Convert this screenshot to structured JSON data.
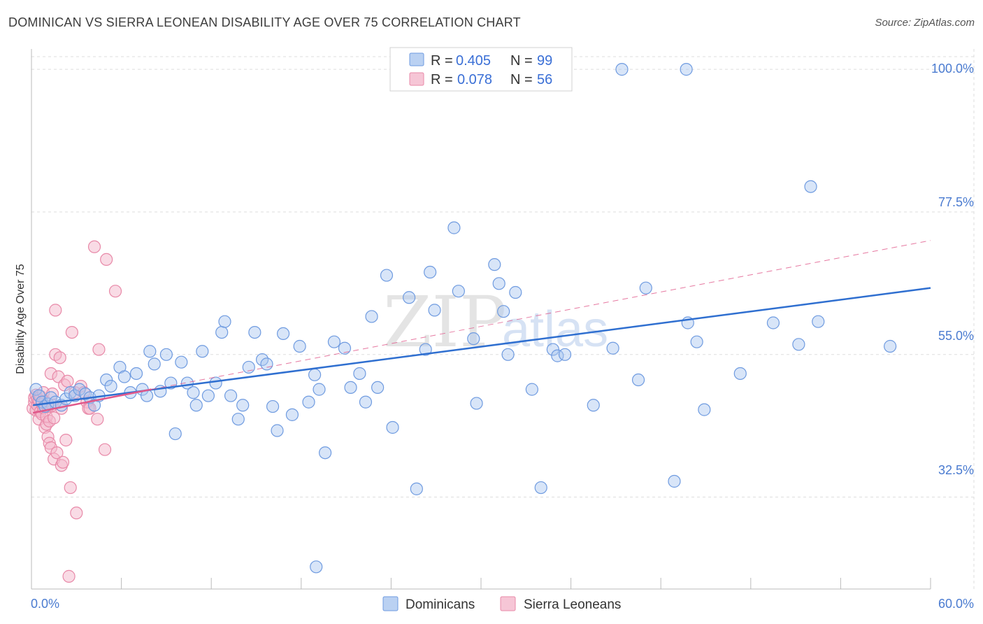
{
  "title": "DOMINICAN VS SIERRA LEONEAN DISABILITY AGE OVER 75 CORRELATION CHART",
  "source": "Source: ZipAtlas.com",
  "watermark": {
    "zip": "ZIP",
    "atlas": "atlas"
  },
  "colors": {
    "blue_fill": "#a9c6ef",
    "blue_stroke": "#6f9be0",
    "blue_line": "#2f6fd0",
    "pink_fill": "#f4b8cc",
    "pink_stroke": "#e889a8",
    "pink_line": "#e0588a",
    "grid": "#dddddd",
    "axis_text": "#4a7bd0"
  },
  "legend": {
    "r_label": "R =",
    "n_label": "N =",
    "entries": [
      {
        "r": "0.405",
        "n": "99"
      },
      {
        "r": "0.078",
        "n": "56"
      }
    ]
  },
  "chart_data": {
    "type": "scatter",
    "title": "DOMINICAN VS SIERRA LEONEAN DISABILITY AGE OVER 75 CORRELATION CHART",
    "xlabel": "",
    "ylabel": "Disability Age Over 75",
    "xlim": [
      0,
      60
    ],
    "ylim": [
      18,
      102
    ],
    "x_tick_labels": [
      "0.0%",
      "60.0%"
    ],
    "y_ticks": [
      32.5,
      55.0,
      77.5,
      100.0
    ],
    "y_tick_labels": [
      "32.5%",
      "55.0%",
      "77.5%",
      "100.0%"
    ],
    "grid": true,
    "legend_position": "top-center",
    "series": [
      {
        "name": "Dominicans",
        "color": "#a9c6ef",
        "trend": {
          "x": [
            0.1,
            60
          ],
          "y": [
            47.0,
            65.5
          ]
        },
        "points": [
          [
            0.3,
            49.5
          ],
          [
            0.5,
            48.5
          ],
          [
            0.7,
            47.5
          ],
          [
            0.9,
            46.8
          ],
          [
            1.1,
            47.2
          ],
          [
            1.3,
            48.2
          ],
          [
            1.6,
            47.5
          ],
          [
            2.0,
            47.0
          ],
          [
            2.3,
            48.0
          ],
          [
            2.6,
            49.0
          ],
          [
            2.9,
            48.5
          ],
          [
            3.2,
            49.5
          ],
          [
            3.6,
            48.8
          ],
          [
            3.9,
            48.2
          ],
          [
            4.2,
            47.0
          ],
          [
            4.5,
            48.5
          ],
          [
            5.0,
            51.0
          ],
          [
            5.3,
            50.0
          ],
          [
            5.9,
            53.0
          ],
          [
            6.2,
            51.5
          ],
          [
            6.6,
            49.0
          ],
          [
            7.0,
            52.0
          ],
          [
            7.4,
            49.5
          ],
          [
            7.7,
            48.5
          ],
          [
            7.9,
            55.5
          ],
          [
            8.2,
            53.5
          ],
          [
            8.6,
            49.2
          ],
          [
            9.0,
            55.0
          ],
          [
            9.3,
            50.5
          ],
          [
            9.6,
            42.5
          ],
          [
            10.0,
            53.8
          ],
          [
            10.4,
            50.5
          ],
          [
            10.8,
            49.0
          ],
          [
            11.0,
            47.0
          ],
          [
            11.4,
            55.5
          ],
          [
            11.8,
            48.5
          ],
          [
            12.3,
            50.5
          ],
          [
            12.7,
            58.5
          ],
          [
            12.9,
            60.2
          ],
          [
            13.3,
            48.5
          ],
          [
            13.8,
            44.8
          ],
          [
            14.1,
            47.0
          ],
          [
            14.5,
            53.0
          ],
          [
            14.9,
            58.5
          ],
          [
            15.4,
            54.2
          ],
          [
            15.7,
            53.5
          ],
          [
            16.1,
            46.8
          ],
          [
            16.4,
            43.0
          ],
          [
            16.8,
            58.3
          ],
          [
            17.4,
            45.5
          ],
          [
            17.9,
            56.3
          ],
          [
            18.5,
            47.5
          ],
          [
            18.9,
            51.8
          ],
          [
            19.2,
            49.5
          ],
          [
            19.6,
            39.5
          ],
          [
            20.2,
            57.0
          ],
          [
            20.9,
            56.0
          ],
          [
            21.3,
            49.8
          ],
          [
            21.9,
            52.0
          ],
          [
            22.3,
            47.5
          ],
          [
            22.7,
            61.0
          ],
          [
            23.1,
            49.8
          ],
          [
            23.7,
            67.5
          ],
          [
            24.1,
            43.5
          ],
          [
            25.2,
            64.0
          ],
          [
            25.7,
            33.8
          ],
          [
            26.3,
            55.8
          ],
          [
            26.6,
            68.0
          ],
          [
            26.9,
            62.0
          ],
          [
            28.2,
            75.0
          ],
          [
            28.5,
            65.0
          ],
          [
            29.5,
            57.5
          ],
          [
            29.7,
            47.3
          ],
          [
            30.9,
            69.2
          ],
          [
            31.2,
            66.2
          ],
          [
            31.5,
            61.8
          ],
          [
            31.8,
            55.0
          ],
          [
            32.3,
            64.8
          ],
          [
            33.4,
            49.5
          ],
          [
            34.0,
            34.0
          ],
          [
            34.8,
            55.8
          ],
          [
            35.1,
            54.8
          ],
          [
            35.6,
            55.0
          ],
          [
            37.5,
            47.0
          ],
          [
            38.8,
            56.0
          ],
          [
            39.4,
            100.0
          ],
          [
            40.5,
            51.0
          ],
          [
            41.0,
            65.5
          ],
          [
            42.9,
            35.0
          ],
          [
            43.7,
            100.0
          ],
          [
            43.8,
            60.0
          ],
          [
            44.4,
            57.0
          ],
          [
            44.9,
            46.3
          ],
          [
            47.3,
            52.0
          ],
          [
            49.5,
            60.0
          ],
          [
            51.2,
            56.6
          ],
          [
            52.0,
            81.5
          ],
          [
            52.5,
            60.2
          ],
          [
            57.3,
            56.3
          ],
          [
            19.0,
            21.5
          ]
        ]
      },
      {
        "name": "Sierra Leoneans",
        "color": "#f4b8cc",
        "trend": {
          "x": [
            0.1,
            8.0
          ],
          "y": [
            45.8,
            49.5
          ]
        },
        "trend_extension": {
          "x": [
            8.0,
            60
          ],
          "y": [
            49.5,
            73.0
          ]
        },
        "points": [
          [
            0.1,
            46.5
          ],
          [
            0.2,
            47.5
          ],
          [
            0.2,
            48.2
          ],
          [
            0.3,
            48.6
          ],
          [
            0.3,
            46.2
          ],
          [
            0.4,
            47.0
          ],
          [
            0.4,
            48.0
          ],
          [
            0.5,
            44.8
          ],
          [
            0.5,
            47.8
          ],
          [
            0.6,
            46.0
          ],
          [
            0.6,
            48.4
          ],
          [
            0.7,
            47.2
          ],
          [
            0.7,
            45.6
          ],
          [
            0.8,
            49.0
          ],
          [
            0.8,
            46.6
          ],
          [
            0.9,
            47.6
          ],
          [
            0.9,
            43.5
          ],
          [
            1.0,
            44.0
          ],
          [
            1.0,
            45.2
          ],
          [
            1.1,
            46.8
          ],
          [
            1.1,
            42.0
          ],
          [
            1.2,
            44.5
          ],
          [
            1.2,
            41.0
          ],
          [
            1.3,
            40.3
          ],
          [
            1.3,
            52.0
          ],
          [
            1.4,
            48.8
          ],
          [
            1.4,
            47.0
          ],
          [
            1.5,
            45.0
          ],
          [
            1.5,
            38.5
          ],
          [
            1.6,
            55.0
          ],
          [
            1.6,
            62.0
          ],
          [
            1.7,
            39.5
          ],
          [
            1.8,
            51.5
          ],
          [
            1.9,
            54.5
          ],
          [
            2.0,
            37.5
          ],
          [
            2.0,
            46.5
          ],
          [
            2.1,
            38.0
          ],
          [
            2.2,
            50.2
          ],
          [
            2.3,
            41.5
          ],
          [
            2.4,
            50.8
          ],
          [
            2.5,
            20.0
          ],
          [
            2.6,
            34.0
          ],
          [
            2.7,
            58.5
          ],
          [
            2.9,
            49.0
          ],
          [
            3.0,
            30.0
          ],
          [
            3.3,
            50.0
          ],
          [
            3.5,
            49.0
          ],
          [
            3.7,
            47.5
          ],
          [
            3.8,
            46.5
          ],
          [
            3.9,
            46.5
          ],
          [
            4.2,
            72.0
          ],
          [
            4.4,
            44.8
          ],
          [
            4.5,
            55.8
          ],
          [
            4.9,
            40.0
          ],
          [
            5.0,
            70.0
          ],
          [
            5.6,
            65.0
          ]
        ]
      }
    ]
  },
  "bottom_legend": [
    {
      "label": "Dominicans"
    },
    {
      "label": "Sierra Leoneans"
    }
  ]
}
